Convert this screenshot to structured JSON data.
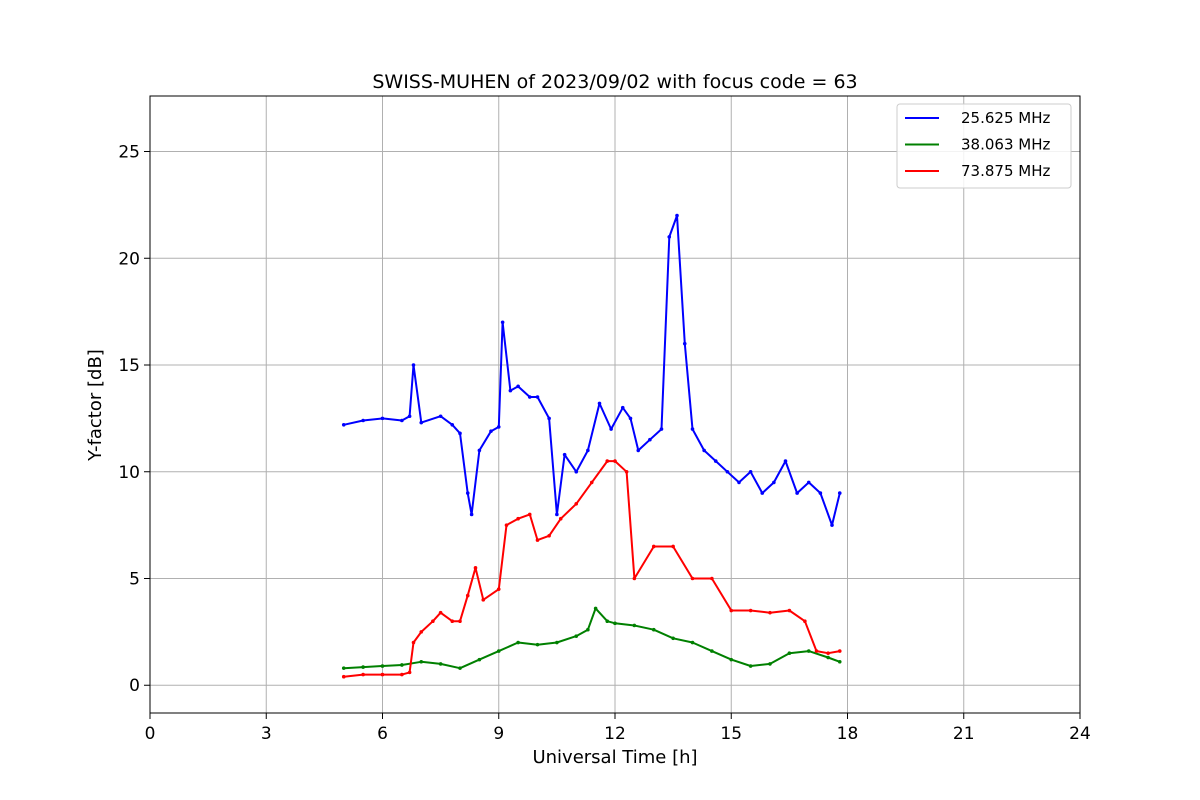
{
  "chart_data": {
    "type": "line",
    "title": "SWISS-MUHEN of 2023/09/02 with focus code = 63",
    "xlabel": "Universal Time [h]",
    "ylabel": "Y-factor [dB]",
    "xlim": [
      0,
      24
    ],
    "ylim": [
      -1.3,
      27.6
    ],
    "xticks": [
      0,
      3,
      6,
      9,
      12,
      15,
      18,
      21,
      24
    ],
    "yticks": [
      0,
      5,
      10,
      15,
      20,
      25
    ],
    "grid": true,
    "legend_position": "top-right",
    "series": [
      {
        "name": "25.625 MHz",
        "color": "#0000ff",
        "x": [
          5.0,
          5.5,
          6.0,
          6.5,
          6.7,
          6.8,
          7.0,
          7.5,
          7.8,
          8.0,
          8.2,
          8.3,
          8.5,
          8.8,
          9.0,
          9.1,
          9.3,
          9.5,
          9.8,
          10.0,
          10.3,
          10.5,
          10.7,
          11.0,
          11.3,
          11.6,
          11.9,
          12.2,
          12.4,
          12.6,
          12.9,
          13.2,
          13.4,
          13.6,
          13.8,
          14.0,
          14.3,
          14.6,
          14.9,
          15.2,
          15.5,
          15.8,
          16.1,
          16.4,
          16.7,
          17.0,
          17.3,
          17.6,
          17.8
        ],
        "y": [
          12.2,
          12.4,
          12.5,
          12.4,
          12.6,
          15.0,
          12.3,
          12.6,
          12.2,
          11.8,
          9.0,
          8.0,
          11.0,
          11.9,
          12.1,
          17.0,
          13.8,
          14.0,
          13.5,
          13.5,
          12.5,
          8.0,
          10.8,
          10.0,
          11.0,
          13.2,
          12.0,
          13.0,
          12.5,
          11.0,
          11.5,
          12.0,
          21.0,
          22.0,
          16.0,
          12.0,
          11.0,
          10.5,
          10.0,
          9.5,
          10.0,
          9.0,
          9.5,
          10.5,
          9.0,
          9.5,
          9.0,
          7.5,
          9.0
        ]
      },
      {
        "name": "38.063 MHz",
        "color": "#008000",
        "x": [
          5.0,
          5.5,
          6.0,
          6.5,
          7.0,
          7.5,
          8.0,
          8.5,
          9.0,
          9.5,
          10.0,
          10.5,
          11.0,
          11.3,
          11.5,
          11.8,
          12.0,
          12.5,
          13.0,
          13.5,
          14.0,
          14.5,
          15.0,
          15.5,
          16.0,
          16.5,
          17.0,
          17.5,
          17.8
        ],
        "y": [
          0.8,
          0.85,
          0.9,
          0.95,
          1.1,
          1.0,
          0.8,
          1.2,
          1.6,
          2.0,
          1.9,
          2.0,
          2.3,
          2.6,
          3.6,
          3.0,
          2.9,
          2.8,
          2.6,
          2.2,
          2.0,
          1.6,
          1.2,
          0.9,
          1.0,
          1.5,
          1.6,
          1.3,
          1.1
        ]
      },
      {
        "name": "73.875 MHz",
        "color": "#ff0000",
        "x": [
          5.0,
          5.5,
          6.0,
          6.5,
          6.7,
          6.8,
          7.0,
          7.3,
          7.5,
          7.8,
          8.0,
          8.2,
          8.4,
          8.6,
          9.0,
          9.2,
          9.5,
          9.8,
          10.0,
          10.3,
          10.6,
          11.0,
          11.4,
          11.8,
          12.0,
          12.3,
          12.5,
          13.0,
          13.5,
          14.0,
          14.5,
          15.0,
          15.5,
          16.0,
          16.5,
          16.9,
          17.2,
          17.5,
          17.8
        ],
        "y": [
          0.4,
          0.5,
          0.5,
          0.5,
          0.6,
          2.0,
          2.5,
          3.0,
          3.4,
          3.0,
          3.0,
          4.2,
          5.5,
          4.0,
          4.5,
          7.5,
          7.8,
          8.0,
          6.8,
          7.0,
          7.8,
          8.5,
          9.5,
          10.5,
          10.5,
          10.0,
          5.0,
          6.5,
          6.5,
          5.0,
          5.0,
          3.5,
          3.5,
          3.4,
          3.5,
          3.0,
          1.6,
          1.5,
          1.6
        ]
      }
    ]
  }
}
